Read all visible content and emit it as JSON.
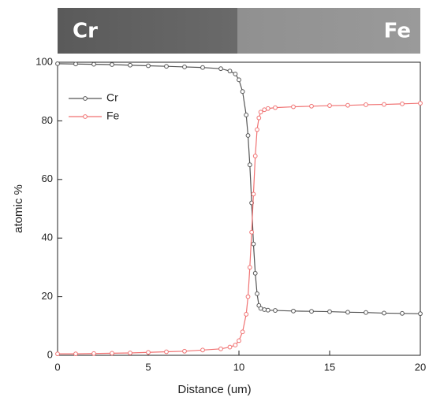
{
  "chart_data": {
    "type": "line",
    "annotations": [
      "Cr",
      "Fe"
    ],
    "xlabel": "Distance (um)",
    "ylabel": "atomic %",
    "x": [
      0,
      1,
      2,
      3,
      4,
      5,
      6,
      7,
      8,
      9,
      9.5,
      9.8,
      10,
      10.2,
      10.4,
      10.5,
      10.6,
      10.7,
      10.8,
      10.9,
      11,
      11.1,
      11.2,
      11.4,
      11.6,
      12,
      13,
      14,
      15,
      16,
      17,
      18,
      19,
      20
    ],
    "series": [
      {
        "name": "Cr",
        "color": "#555555",
        "values": [
          99.5,
          99.4,
          99.3,
          99.2,
          99,
          98.8,
          98.6,
          98.4,
          98.2,
          97.8,
          97,
          96,
          94,
          90,
          82,
          75,
          65,
          52,
          38,
          28,
          21,
          17,
          16,
          15.6,
          15.4,
          15.3,
          15.1,
          15,
          14.9,
          14.7,
          14.6,
          14.4,
          14.3,
          14.2
        ]
      },
      {
        "name": "Fe",
        "color": "#f07272",
        "values": [
          0.5,
          0.5,
          0.6,
          0.7,
          0.8,
          1,
          1.2,
          1.4,
          1.8,
          2.2,
          2.8,
          3.5,
          5,
          8,
          14,
          20,
          30,
          42,
          55,
          68,
          77,
          81,
          83,
          83.8,
          84.2,
          84.5,
          84.8,
          85,
          85.2,
          85.3,
          85.5,
          85.6,
          85.8,
          86
        ]
      }
    ],
    "xlim": [
      0,
      20
    ],
    "xticks": [
      0,
      5,
      10,
      15,
      20
    ],
    "ylim": [
      0,
      100
    ],
    "yticks": [
      0,
      20,
      40,
      60,
      80,
      100
    ],
    "legend": "upper left"
  }
}
